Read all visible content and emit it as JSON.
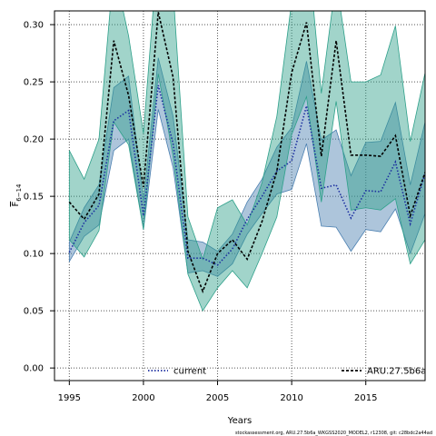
{
  "chart_data": {
    "type": "area",
    "xlabel": "Years",
    "ylabel": "F",
    "ylabel_sub": "6−14",
    "xlim": [
      1994,
      2019
    ],
    "ylim": [
      -0.011,
      0.312
    ],
    "xticks": [
      1995,
      2000,
      2005,
      2010,
      2015
    ],
    "yticks": [
      0.0,
      0.05,
      0.1,
      0.15,
      0.2,
      0.25,
      0.3
    ],
    "ytick_labels": [
      "0.00",
      "0.05",
      "0.10",
      "0.15",
      "0.20",
      "0.25",
      "0.30"
    ],
    "grid": true,
    "legend_position": "bottom",
    "footer": "stockassessment.org, ARU.27.5b6a_WKGSS2020_MODEL2, r12308, git: c28bdc2a44ad",
    "series": [
      {
        "name": "current",
        "color": "#4a7fb0",
        "line_color": "#1c2fa0",
        "line_style": "dotted",
        "x": [
          1995,
          1996,
          1997,
          1998,
          1999,
          2000,
          2001,
          2002,
          2003,
          2004,
          2005,
          2006,
          2007,
          2008,
          2009,
          2010,
          2011,
          2012,
          2013,
          2014,
          2015,
          2016,
          2017,
          2018,
          2019
        ],
        "y": [
          0.101,
          0.127,
          0.142,
          0.216,
          0.225,
          0.133,
          0.247,
          0.196,
          0.096,
          0.096,
          0.09,
          0.104,
          0.13,
          0.15,
          0.172,
          0.181,
          0.229,
          0.157,
          0.16,
          0.131,
          0.155,
          0.154,
          0.18,
          0.126,
          0.17
        ],
        "lower": [
          0.093,
          0.115,
          0.125,
          0.19,
          0.2,
          0.121,
          0.226,
          0.175,
          0.083,
          0.085,
          0.08,
          0.091,
          0.117,
          0.135,
          0.152,
          0.156,
          0.196,
          0.124,
          0.123,
          0.102,
          0.121,
          0.119,
          0.139,
          0.1,
          0.135
        ],
        "upper": [
          0.11,
          0.14,
          0.16,
          0.245,
          0.255,
          0.146,
          0.271,
          0.22,
          0.112,
          0.11,
          0.102,
          0.117,
          0.145,
          0.165,
          0.193,
          0.21,
          0.268,
          0.199,
          0.208,
          0.168,
          0.197,
          0.198,
          0.232,
          0.16,
          0.215
        ]
      },
      {
        "name": "ARU.27.5b6a",
        "color": "#2ea08a",
        "line_color": "#000000",
        "line_style": "dashed",
        "x": [
          1995,
          1996,
          1997,
          1998,
          1999,
          2000,
          2001,
          2002,
          2003,
          2004,
          2005,
          2006,
          2007,
          2008,
          2009,
          2010,
          2011,
          2012,
          2013,
          2014,
          2015,
          2016,
          2017,
          2018,
          2019
        ],
        "y": [
          0.145,
          0.13,
          0.152,
          0.286,
          0.238,
          0.158,
          0.311,
          0.254,
          0.102,
          0.067,
          0.1,
          0.112,
          0.095,
          0.128,
          0.172,
          0.258,
          0.302,
          0.185,
          0.286,
          0.186,
          0.186,
          0.185,
          0.203,
          0.133,
          0.171
        ],
        "lower": [
          0.112,
          0.097,
          0.12,
          0.215,
          0.195,
          0.121,
          0.257,
          0.185,
          0.082,
          0.05,
          0.07,
          0.085,
          0.07,
          0.1,
          0.132,
          0.204,
          0.237,
          0.145,
          0.233,
          0.138,
          0.14,
          0.138,
          0.148,
          0.091,
          0.112
        ],
        "upper": [
          0.19,
          0.165,
          0.2,
          0.35,
          0.29,
          0.205,
          0.37,
          0.33,
          0.132,
          0.095,
          0.14,
          0.147,
          0.125,
          0.162,
          0.22,
          0.32,
          0.38,
          0.24,
          0.34,
          0.25,
          0.25,
          0.256,
          0.299,
          0.198,
          0.258
        ]
      }
    ]
  }
}
